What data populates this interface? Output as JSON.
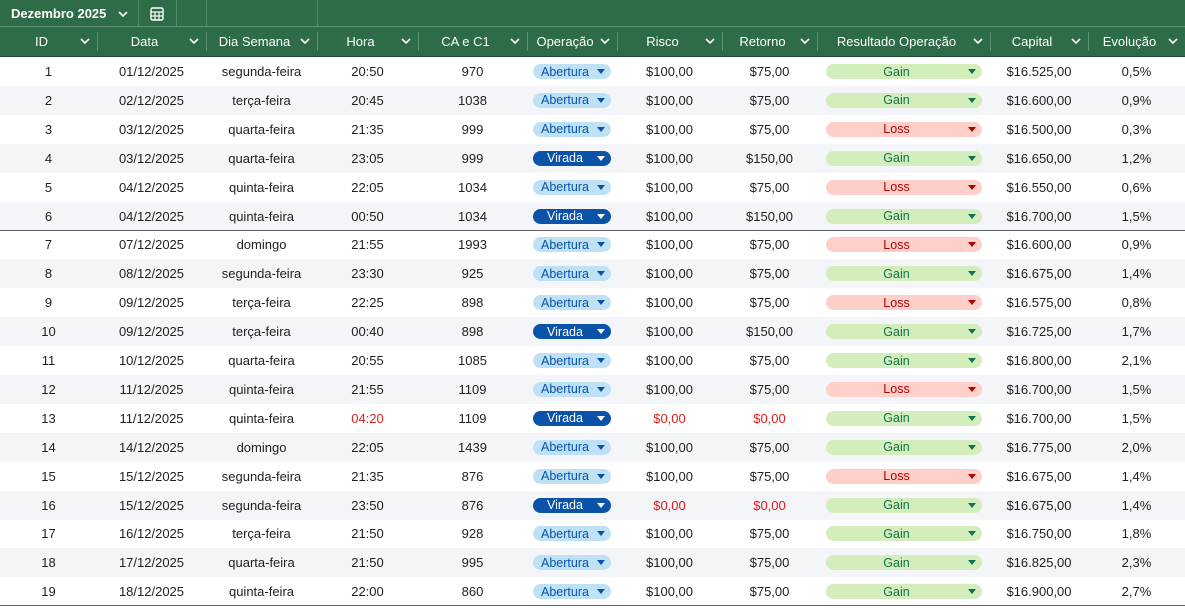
{
  "sheet": {
    "tab_name": "Dezembro 2025",
    "tab_menu_icon": "chevron-down-icon",
    "table_icon": "table-icon"
  },
  "colors": {
    "header_bg": "#2e6b47",
    "abertura_bg": "#bfe1f6",
    "virada_bg": "#0a53a8",
    "gain_bg": "#d4edbc",
    "loss_bg": "#ffcfc9",
    "alert_text": "#e01b1b"
  },
  "columns": [
    "ID",
    "Data",
    "Dia Semana",
    "Hora",
    "CA e C1",
    "Operação",
    "Risco",
    "Retorno",
    "Resultado Operação",
    "Capital",
    "Evolução"
  ],
  "rows": [
    [
      "1",
      "01/12/2025",
      "segunda-feira",
      "20:50",
      "970",
      "Abertura",
      "$100,00",
      "$75,00",
      "Gain",
      "$16.525,00",
      "0,5%"
    ],
    [
      "2",
      "02/12/2025",
      "terça-feira",
      "20:45",
      "1038",
      "Abertura",
      "$100,00",
      "$75,00",
      "Gain",
      "$16.600,00",
      "0,9%"
    ],
    [
      "3",
      "03/12/2025",
      "quarta-feira",
      "21:35",
      "999",
      "Abertura",
      "$100,00",
      "$75,00",
      "Loss",
      "$16.500,00",
      "0,3%"
    ],
    [
      "4",
      "03/12/2025",
      "quarta-feira",
      "23:05",
      "999",
      "Virada",
      "$100,00",
      "$150,00",
      "Gain",
      "$16.650,00",
      "1,2%"
    ],
    [
      "5",
      "04/12/2025",
      "quinta-feira",
      "22:05",
      "1034",
      "Abertura",
      "$100,00",
      "$75,00",
      "Loss",
      "$16.550,00",
      "0,6%"
    ],
    [
      "6",
      "04/12/2025",
      "quinta-feira",
      "00:50",
      "1034",
      "Virada",
      "$100,00",
      "$150,00",
      "Gain",
      "$16.700,00",
      "1,5%"
    ],
    [
      "7",
      "07/12/2025",
      "domingo",
      "21:55",
      "1993",
      "Abertura",
      "$100,00",
      "$75,00",
      "Loss",
      "$16.600,00",
      "0,9%"
    ],
    [
      "8",
      "08/12/2025",
      "segunda-feira",
      "23:30",
      "925",
      "Abertura",
      "$100,00",
      "$75,00",
      "Gain",
      "$16.675,00",
      "1,4%"
    ],
    [
      "9",
      "09/12/2025",
      "terça-feira",
      "22:25",
      "898",
      "Abertura",
      "$100,00",
      "$75,00",
      "Loss",
      "$16.575,00",
      "0,8%"
    ],
    [
      "10",
      "09/12/2025",
      "terça-feira",
      "00:40",
      "898",
      "Virada",
      "$100,00",
      "$150,00",
      "Gain",
      "$16.725,00",
      "1,7%"
    ],
    [
      "11",
      "10/12/2025",
      "quarta-feira",
      "20:55",
      "1085",
      "Abertura",
      "$100,00",
      "$75,00",
      "Gain",
      "$16.800,00",
      "2,1%"
    ],
    [
      "12",
      "11/12/2025",
      "quinta-feira",
      "21:55",
      "1109",
      "Abertura",
      "$100,00",
      "$75,00",
      "Loss",
      "$16.700,00",
      "1,5%"
    ],
    [
      "13",
      "11/12/2025",
      "quinta-feira",
      "04:20",
      "1109",
      "Virada",
      "$0,00",
      "$0,00",
      "Gain",
      "$16.700,00",
      "1,5%"
    ],
    [
      "14",
      "14/12/2025",
      "domingo",
      "22:05",
      "1439",
      "Abertura",
      "$100,00",
      "$75,00",
      "Gain",
      "$16.775,00",
      "2,0%"
    ],
    [
      "15",
      "15/12/2025",
      "segunda-feira",
      "21:35",
      "876",
      "Abertura",
      "$100,00",
      "$75,00",
      "Loss",
      "$16.675,00",
      "1,4%"
    ],
    [
      "16",
      "15/12/2025",
      "segunda-feira",
      "23:50",
      "876",
      "Virada",
      "$0,00",
      "$0,00",
      "Gain",
      "$16.675,00",
      "1,4%"
    ],
    [
      "17",
      "16/12/2025",
      "terça-feira",
      "21:50",
      "928",
      "Abertura",
      "$100,00",
      "$75,00",
      "Gain",
      "$16.750,00",
      "1,8%"
    ],
    [
      "18",
      "17/12/2025",
      "quarta-feira",
      "21:50",
      "995",
      "Abertura",
      "$100,00",
      "$75,00",
      "Gain",
      "$16.825,00",
      "2,3%"
    ],
    [
      "19",
      "18/12/2025",
      "quinta-feira",
      "22:00",
      "860",
      "Abertura",
      "$100,00",
      "$75,00",
      "Gain",
      "$16.900,00",
      "2,7%"
    ]
  ],
  "red_cells": [
    [
      12,
      3
    ],
    [
      12,
      6
    ],
    [
      12,
      7
    ],
    [
      15,
      6
    ],
    [
      15,
      7
    ]
  ],
  "week_breaks_after": [
    5,
    12
  ]
}
